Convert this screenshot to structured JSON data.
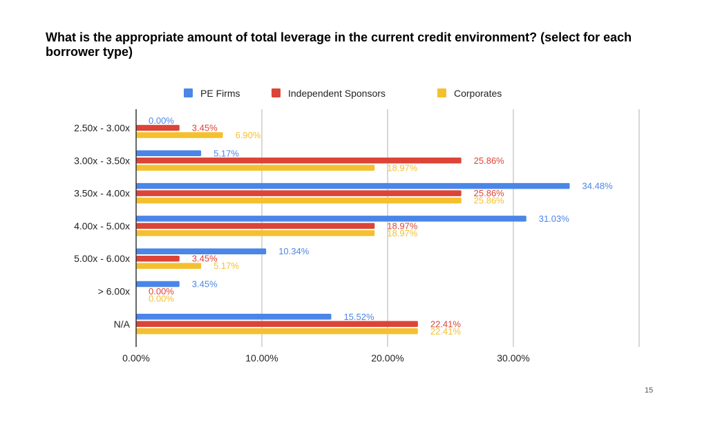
{
  "page": {
    "title": "What is the appropriate amount of total leverage in the current credit environment? (select for each borrower type)",
    "page_number": "15"
  },
  "chart_data": {
    "type": "bar",
    "orientation": "horizontal",
    "title": "What is the appropriate amount of total leverage in the current credit environment? (select for each borrower type)",
    "categories": [
      "2.50x - 3.00x",
      "3.00x - 3.50x",
      "3.50x - 4.00x",
      "4.00x - 5.00x",
      "5.00x - 6.00x",
      "> 6.00x",
      "N/A"
    ],
    "series": [
      {
        "name": "PE Firms",
        "color": "#4a86e8",
        "values": [
          0.0,
          5.17,
          34.48,
          31.03,
          10.34,
          3.45,
          15.52
        ],
        "labels": [
          "0.00%",
          "5.17%",
          "34.48%",
          "31.03%",
          "10.34%",
          "3.45%",
          "15.52%"
        ]
      },
      {
        "name": "Independent Sponsors",
        "color": "#db4437",
        "values": [
          3.45,
          25.86,
          25.86,
          18.97,
          3.45,
          0.0,
          22.41
        ],
        "labels": [
          "3.45%",
          "25.86%",
          "25.86%",
          "18.97%",
          "3.45%",
          "0.00%",
          "22.41%"
        ]
      },
      {
        "name": "Corporates",
        "color": "#f4c030",
        "values": [
          6.9,
          18.97,
          25.86,
          18.97,
          5.17,
          0.0,
          22.41
        ],
        "labels": [
          "6.90%",
          "18.97%",
          "25.86%",
          "18.97%",
          "5.17%",
          "0.00%",
          "22.41%"
        ]
      }
    ],
    "x_ticks": [
      0,
      10,
      20,
      30
    ],
    "x_tick_labels": [
      "0.00%",
      "10.00%",
      "20.00%",
      "30.00%"
    ],
    "xlim": [
      0,
      40
    ],
    "grid": true,
    "legend": "top"
  }
}
